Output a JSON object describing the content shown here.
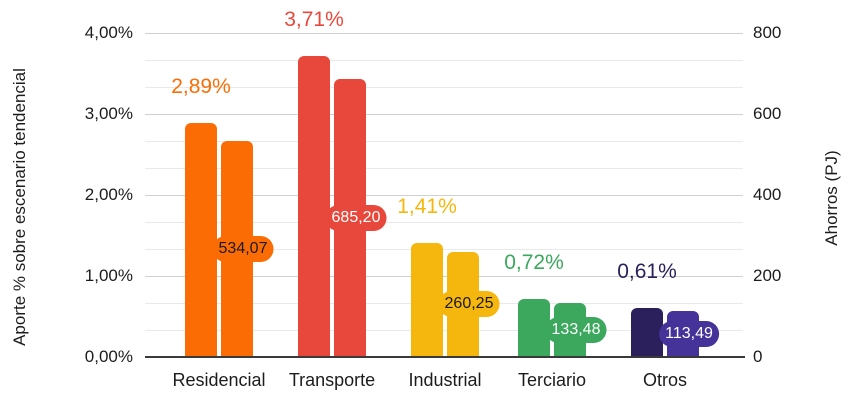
{
  "chart_data": {
    "type": "bar",
    "title": "",
    "legend": "none",
    "grid": {
      "major_every_left": "1,00%",
      "minor_divisions_per_major": 3,
      "gridlines": "horizontal"
    },
    "categories": [
      "Residencial",
      "Transporte",
      "Industrial",
      "Terciario",
      "Otros"
    ],
    "series": [
      {
        "name": "Aporte % sobre escenario tendencial",
        "axis": "left",
        "unit": "%",
        "values": [
          2.89,
          3.71,
          1.41,
          0.72,
          0.61
        ],
        "labels": [
          "2,89%",
          "3,71%",
          "1,41%",
          "0,72%",
          "0,61%"
        ],
        "colors": [
          "#fb6d04",
          "#e8483b",
          "#f5b60d",
          "#3ba85d",
          "#2b1f5c"
        ]
      },
      {
        "name": "Ahorros (PJ)",
        "axis": "right",
        "unit": "PJ",
        "values": [
          534.07,
          685.2,
          260.25,
          133.48,
          113.49
        ],
        "labels": [
          "534,07",
          "685,20",
          "260,25",
          "133,48",
          "113,49"
        ],
        "colors": [
          "#fb6d04",
          "#e8483b",
          "#f5b60d",
          "#3ba85d",
          "#453399"
        ],
        "label_text_colors": [
          "#1a1a1a",
          "#ffffff",
          "#1a1a1a",
          "#ffffff",
          "#ffffff"
        ]
      }
    ],
    "left_axis": {
      "title": "Aporte % sobre escenario tendencial",
      "ticks": [
        "0,00%",
        "1,00%",
        "2,00%",
        "3,00%",
        "4,00%"
      ],
      "range": [
        0,
        4
      ]
    },
    "right_axis": {
      "title": "Ahorros (PJ)",
      "ticks": [
        "0",
        "200",
        "400",
        "600",
        "800"
      ],
      "range": [
        0,
        800
      ]
    }
  }
}
